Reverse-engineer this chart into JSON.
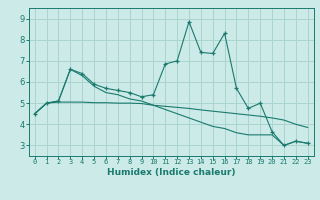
{
  "xlabel": "Humidex (Indice chaleur)",
  "x": [
    0,
    1,
    2,
    3,
    4,
    5,
    6,
    7,
    8,
    9,
    10,
    11,
    12,
    13,
    14,
    15,
    16,
    17,
    18,
    19,
    20,
    21,
    22,
    23
  ],
  "line1": [
    4.5,
    5.0,
    5.1,
    6.6,
    6.4,
    5.9,
    5.7,
    5.6,
    5.5,
    5.3,
    5.4,
    6.85,
    7.0,
    8.85,
    7.4,
    7.35,
    8.3,
    5.7,
    4.75,
    5.0,
    3.65,
    3.0,
    3.2,
    3.1
  ],
  "line2": [
    4.5,
    5.0,
    5.05,
    5.05,
    5.05,
    5.02,
    5.02,
    5.0,
    5.0,
    4.98,
    4.9,
    4.85,
    4.8,
    4.75,
    4.68,
    4.62,
    4.56,
    4.5,
    4.44,
    4.38,
    4.3,
    4.2,
    4.0,
    3.85
  ],
  "line3": [
    4.5,
    5.0,
    5.1,
    6.6,
    6.3,
    5.8,
    5.5,
    5.4,
    5.2,
    5.1,
    4.9,
    4.7,
    4.5,
    4.3,
    4.1,
    3.9,
    3.8,
    3.6,
    3.5,
    3.5,
    3.5,
    3.0,
    3.2,
    3.1
  ],
  "line_color": "#1a7a6e",
  "bg_color": "#cceae8",
  "grid_color": "#aad4d0",
  "ylim": [
    2.5,
    9.5
  ],
  "yticks": [
    3,
    4,
    5,
    6,
    7,
    8,
    9
  ],
  "xticks": [
    0,
    1,
    2,
    3,
    4,
    5,
    6,
    7,
    8,
    9,
    10,
    11,
    12,
    13,
    14,
    15,
    16,
    17,
    18,
    19,
    20,
    21,
    22,
    23
  ]
}
